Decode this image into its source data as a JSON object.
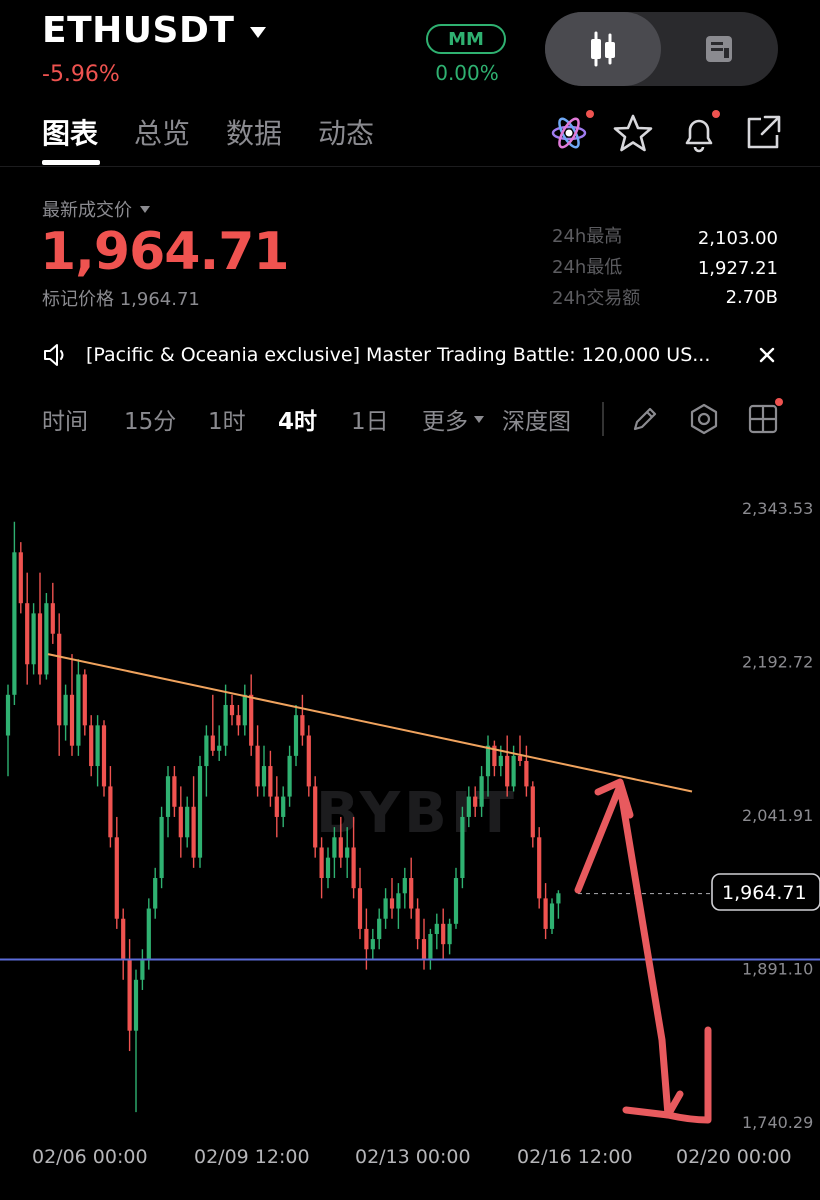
{
  "header": {
    "symbol": "ETHUSDT",
    "change_pct": "-5.96%",
    "mm_label": "MM",
    "mm_value": "0.00%"
  },
  "tabs": [
    {
      "label": "图表",
      "active": true
    },
    {
      "label": "总览",
      "active": false
    },
    {
      "label": "数据",
      "active": false
    },
    {
      "label": "动态",
      "active": false
    }
  ],
  "price": {
    "last_label": "最新成交价",
    "last_price": "1,964.71",
    "mark_price": "标记价格 1,964.71",
    "stats": [
      {
        "label": "24h最高",
        "value": "2,103.00"
      },
      {
        "label": "24h最低",
        "value": "1,927.21"
      },
      {
        "label": "24h交易额",
        "value": "2.70B"
      }
    ]
  },
  "announcement": {
    "text": "[Pacific & Oceania exclusive] Master Trading Battle: 120,000 US..."
  },
  "timeframes": [
    {
      "label": "时间",
      "active": false
    },
    {
      "label": "15分",
      "active": false
    },
    {
      "label": "1时",
      "active": false
    },
    {
      "label": "4时",
      "active": true
    },
    {
      "label": "1日",
      "active": false
    },
    {
      "label": "更多",
      "active": false
    },
    {
      "label": "深度图",
      "active": false
    }
  ],
  "colors": {
    "up": "#2fb171",
    "down": "#ef5350",
    "trendline": "#f0a35e",
    "support": "#5b6bd8",
    "arrow": "#e85a5e"
  },
  "chart_data": {
    "type": "candlestick",
    "interval": "4h",
    "watermark": "BYBIT",
    "y_ticks": [
      "2,343.53",
      "2,192.72",
      "2,041.91",
      "1,891.10",
      "1,740.29"
    ],
    "y_tick_values": [
      2343.53,
      2192.72,
      2041.91,
      1891.1,
      1740.29
    ],
    "x_ticks": [
      "02/06 00:00",
      "02/09 12:00",
      "02/13 00:00",
      "02/16 12:00",
      "02/20 00:00"
    ],
    "current_price": 1964.71,
    "current_price_label": "1,964.71",
    "support_level": 1900,
    "trendline": {
      "start_price": 2200,
      "end_price": 2065
    },
    "candles": [
      [
        2120,
        2170,
        2080,
        2160
      ],
      [
        2160,
        2330,
        2150,
        2300
      ],
      [
        2300,
        2310,
        2240,
        2250
      ],
      [
        2250,
        2280,
        2170,
        2190
      ],
      [
        2190,
        2250,
        2180,
        2240
      ],
      [
        2240,
        2280,
        2170,
        2180
      ],
      [
        2180,
        2260,
        2175,
        2250
      ],
      [
        2250,
        2270,
        2210,
        2220
      ],
      [
        2220,
        2240,
        2100,
        2130
      ],
      [
        2130,
        2170,
        2115,
        2160
      ],
      [
        2160,
        2200,
        2100,
        2110
      ],
      [
        2110,
        2195,
        2100,
        2180
      ],
      [
        2180,
        2185,
        2120,
        2130
      ],
      [
        2130,
        2140,
        2080,
        2090
      ],
      [
        2090,
        2140,
        2070,
        2130
      ],
      [
        2130,
        2135,
        2060,
        2070
      ],
      [
        2070,
        2090,
        2010,
        2020
      ],
      [
        2020,
        2040,
        1930,
        1940
      ],
      [
        1940,
        1950,
        1880,
        1900
      ],
      [
        1900,
        1920,
        1810,
        1830
      ],
      [
        1830,
        1890,
        1750,
        1880
      ],
      [
        1880,
        1910,
        1870,
        1900
      ],
      [
        1900,
        1960,
        1890,
        1950
      ],
      [
        1950,
        1990,
        1940,
        1980
      ],
      [
        1980,
        2050,
        1970,
        2040
      ],
      [
        2040,
        2090,
        2020,
        2080
      ],
      [
        2080,
        2090,
        2040,
        2050
      ],
      [
        2050,
        2070,
        2000,
        2020
      ],
      [
        2020,
        2060,
        2010,
        2050
      ],
      [
        2050,
        2080,
        1990,
        2000
      ],
      [
        2000,
        2100,
        1990,
        2090
      ],
      [
        2090,
        2130,
        2060,
        2120
      ],
      [
        2120,
        2160,
        2100,
        2105
      ],
      [
        2105,
        2130,
        2095,
        2110
      ],
      [
        2110,
        2170,
        2100,
        2150
      ],
      [
        2150,
        2160,
        2130,
        2140
      ],
      [
        2140,
        2150,
        2120,
        2130
      ],
      [
        2130,
        2170,
        2120,
        2160
      ],
      [
        2160,
        2180,
        2100,
        2110
      ],
      [
        2110,
        2130,
        2060,
        2070
      ],
      [
        2070,
        2110,
        2060,
        2090
      ],
      [
        2090,
        2105,
        2050,
        2060
      ],
      [
        2060,
        2080,
        2020,
        2040
      ],
      [
        2040,
        2070,
        2030,
        2060
      ],
      [
        2060,
        2110,
        2050,
        2100
      ],
      [
        2100,
        2150,
        2090,
        2140
      ],
      [
        2140,
        2160,
        2110,
        2120
      ],
      [
        2120,
        2130,
        2060,
        2070
      ],
      [
        2070,
        2080,
        2000,
        2010
      ],
      [
        2010,
        2020,
        1960,
        1980
      ],
      [
        1980,
        2010,
        1970,
        2000
      ],
      [
        2000,
        2030,
        1980,
        2020
      ],
      [
        2020,
        2040,
        1990,
        2000
      ],
      [
        2000,
        2030,
        1980,
        2010
      ],
      [
        2010,
        2040,
        1960,
        1970
      ],
      [
        1970,
        1990,
        1920,
        1930
      ],
      [
        1930,
        1950,
        1890,
        1910
      ],
      [
        1910,
        1930,
        1900,
        1920
      ],
      [
        1920,
        1950,
        1910,
        1940
      ],
      [
        1940,
        1970,
        1930,
        1960
      ],
      [
        1960,
        1980,
        1940,
        1950
      ],
      [
        1950,
        1975,
        1930,
        1965
      ],
      [
        1965,
        1990,
        1950,
        1980
      ],
      [
        1980,
        2000,
        1940,
        1950
      ],
      [
        1950,
        1960,
        1910,
        1920
      ],
      [
        1920,
        1940,
        1890,
        1900
      ],
      [
        1900,
        1930,
        1890,
        1925
      ],
      [
        1925,
        1945,
        1910,
        1935
      ],
      [
        1935,
        1950,
        1900,
        1915
      ],
      [
        1915,
        1940,
        1905,
        1935
      ],
      [
        1935,
        1990,
        1930,
        1980
      ],
      [
        1980,
        2050,
        1970,
        2040
      ],
      [
        2040,
        2070,
        2030,
        2060
      ],
      [
        2060,
        2070,
        2040,
        2050
      ],
      [
        2050,
        2090,
        2040,
        2080
      ],
      [
        2080,
        2120,
        2060,
        2110
      ],
      [
        2110,
        2115,
        2080,
        2090
      ],
      [
        2090,
        2110,
        2080,
        2100
      ],
      [
        2100,
        2120,
        2060,
        2070
      ],
      [
        2070,
        2110,
        2065,
        2100
      ],
      [
        2100,
        2120,
        2090,
        2095
      ],
      [
        2095,
        2110,
        2060,
        2070
      ],
      [
        2070,
        2075,
        2010,
        2020
      ],
      [
        2020,
        2030,
        1950,
        1960
      ],
      [
        1960,
        1975,
        1920,
        1930
      ],
      [
        1930,
        1960,
        1925,
        1955
      ],
      [
        1955,
        1968,
        1940,
        1965
      ]
    ]
  }
}
